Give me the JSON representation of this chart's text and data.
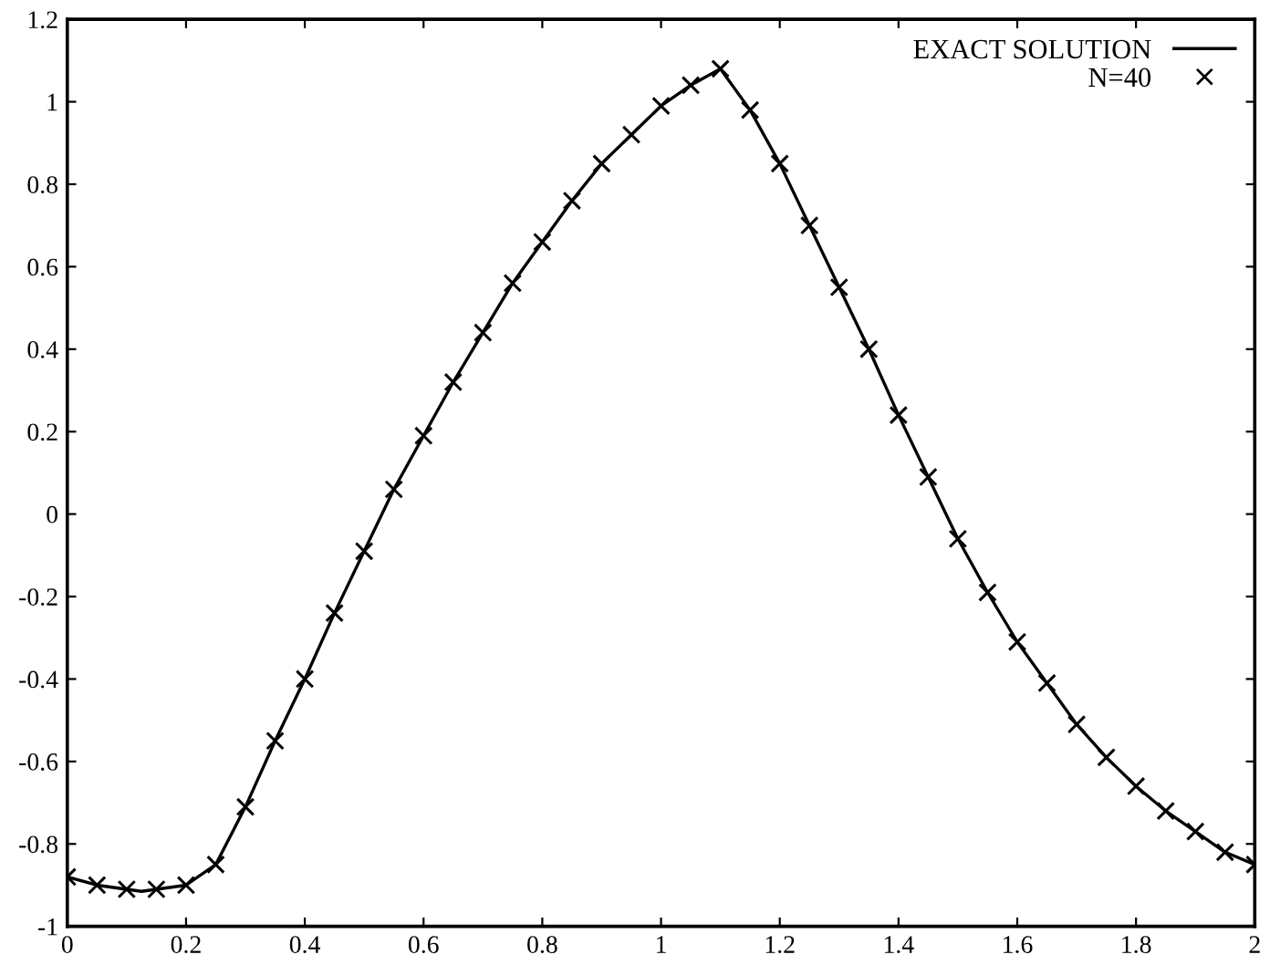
{
  "chart_data": {
    "type": "line",
    "xlim": [
      0,
      2
    ],
    "ylim": [
      -1,
      1.2
    ],
    "xticks": [
      0,
      0.2,
      0.4,
      0.6,
      0.8,
      1,
      1.2,
      1.4,
      1.6,
      1.8,
      2
    ],
    "yticks": [
      -1,
      -0.8,
      -0.6,
      -0.4,
      -0.2,
      0,
      0.2,
      0.4,
      0.6,
      0.8,
      1,
      1.2
    ],
    "grid": false,
    "legend": "top right",
    "series": [
      {
        "name": "EXACT SOLUTION",
        "color": "#000000",
        "line_style": "solid",
        "marker": "none",
        "x": [
          0,
          0.05,
          0.1,
          0.125,
          0.15,
          0.2,
          0.25,
          0.3,
          0.35,
          0.4,
          0.45,
          0.5,
          0.55,
          0.6,
          0.65,
          0.7,
          0.75,
          0.8,
          0.85,
          0.9,
          0.95,
          1.0,
          1.05,
          1.1,
          1.15,
          1.2,
          1.25,
          1.3,
          1.35,
          1.4,
          1.45,
          1.5,
          1.55,
          1.6,
          1.65,
          1.7,
          1.75,
          1.8,
          1.85,
          1.9,
          1.95,
          2.0
        ],
        "values": [
          -0.88,
          -0.9,
          -0.91,
          -0.915,
          -0.91,
          -0.9,
          -0.85,
          -0.71,
          -0.55,
          -0.4,
          -0.24,
          -0.09,
          0.06,
          0.19,
          0.32,
          0.44,
          0.56,
          0.66,
          0.76,
          0.85,
          0.92,
          0.99,
          1.04,
          1.08,
          0.98,
          0.85,
          0.7,
          0.55,
          0.4,
          0.24,
          0.09,
          -0.06,
          -0.19,
          -0.31,
          -0.41,
          -0.51,
          -0.59,
          -0.66,
          -0.72,
          -0.77,
          -0.82,
          -0.85
        ]
      },
      {
        "name": "N=40",
        "type": "scatter",
        "color": "#000000",
        "marker": "cross",
        "x": [
          0,
          0.05,
          0.1,
          0.15,
          0.2,
          0.25,
          0.3,
          0.35,
          0.4,
          0.45,
          0.5,
          0.55,
          0.6,
          0.65,
          0.7,
          0.75,
          0.8,
          0.85,
          0.9,
          0.95,
          1.0,
          1.05,
          1.1,
          1.15,
          1.2,
          1.25,
          1.3,
          1.35,
          1.4,
          1.45,
          1.5,
          1.55,
          1.6,
          1.65,
          1.7,
          1.75,
          1.8,
          1.85,
          1.9,
          1.95,
          2.0
        ],
        "values": [
          -0.88,
          -0.9,
          -0.91,
          -0.91,
          -0.9,
          -0.85,
          -0.71,
          -0.55,
          -0.4,
          -0.24,
          -0.09,
          0.06,
          0.19,
          0.32,
          0.44,
          0.56,
          0.66,
          0.76,
          0.85,
          0.92,
          0.99,
          1.04,
          1.08,
          0.98,
          0.85,
          0.7,
          0.55,
          0.4,
          0.24,
          0.09,
          -0.06,
          -0.19,
          -0.31,
          -0.41,
          -0.51,
          -0.59,
          -0.66,
          -0.72,
          -0.77,
          -0.82,
          -0.85
        ]
      }
    ]
  }
}
